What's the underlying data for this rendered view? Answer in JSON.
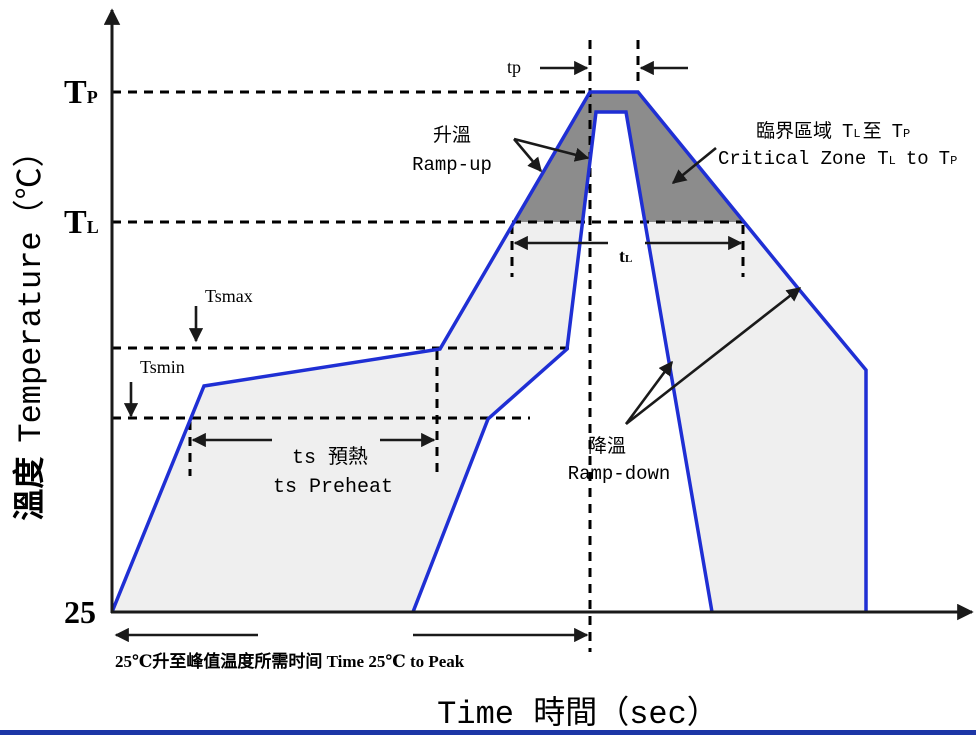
{
  "axes": {
    "y_label_cn": "溫度",
    "y_label_en": "Temperature（℃）",
    "x_label": "Time 時間（sec）",
    "tick_tp_main": "T",
    "tick_tp_sub": "P",
    "tick_tl_main": "T",
    "tick_tl_sub": "L",
    "tick_base": "25"
  },
  "labels": {
    "tp": "tp",
    "tsmax": "Tsmax",
    "tsmin": "Tsmin",
    "ramp_up_cn": "升溫",
    "ramp_up_en": "Ramp-up",
    "critical_cn": "臨界區域",
    "critical_en": "Critical Zone",
    "critical_from_main": "T",
    "critical_from_sub": "L",
    "critical_to_cn": "至",
    "critical_to_en": "to",
    "critical_to_main": "T",
    "critical_to_sub": "P",
    "tl_main": "t",
    "tl_sub": "L",
    "preheat_cn": "ts 預熱",
    "preheat_en": "ts Preheat",
    "ramp_down_cn": "降溫",
    "ramp_down_en": "Ramp-down",
    "time_to_peak": "25℃升至峰值温度所需时间 Time 25℃ to Peak"
  },
  "colors": {
    "profile": "#1f2fd4",
    "preheat_fill": "#efefef",
    "critical_fill": "#8c8c8c",
    "footer_rule": "#1c36a6"
  }
}
